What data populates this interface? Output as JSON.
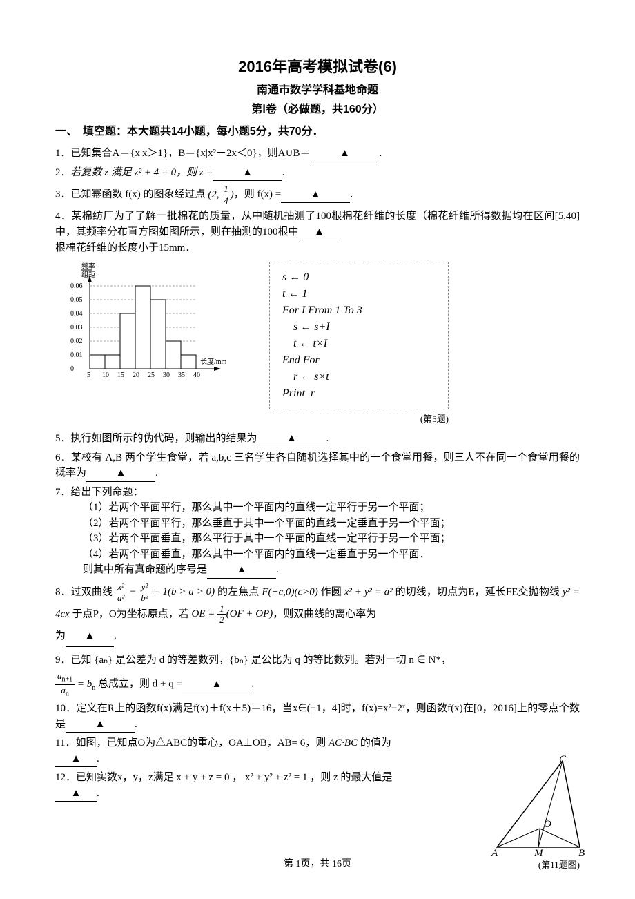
{
  "header": {
    "title": "2016年高考模拟试卷(6)",
    "subtitle": "南通市数学学科基地命题",
    "paper_part": "第Ⅰ卷（必做题，共160分）"
  },
  "section1": {
    "heading": "一、　填空题：本大题共14小题，每小题5分，共70分．"
  },
  "q1": {
    "num": "1．",
    "text_a": "已知集合A＝{x|x＞1}，B＝{x|x²－2x＜0}，则A∪B＝",
    "text_b": "."
  },
  "q2": {
    "num": "2．",
    "text_a": "若复数 z 满足 z² + 4 = 0，则 z =",
    "text_b": "."
  },
  "q3": {
    "num": "3．",
    "text_a": "已知幂函数 f(x) 的图象经过点",
    "point": "(2, 1/4)",
    "text_b": "，则 f(x) =",
    "text_c": "."
  },
  "q4": {
    "num": "4．",
    "text_a": "某棉纺厂为了了解一批棉花的质量，从中随机抽测了100根棉花纤维的长度（棉花纤维所得数据均在区间[5,40]中，其频率分布直方图如图所示，则在抽测的100根中",
    "text_b": "根棉花纤维的长度小于15mm．"
  },
  "histogram": {
    "ylabel_top": "频率",
    "ylabel_bot": "组距",
    "xlabel": "长度/mm",
    "yticks": [
      "0",
      "0.01",
      "0.02",
      "0.03",
      "0.04",
      "0.05",
      "0.06"
    ],
    "xticks": [
      "5",
      "10",
      "15",
      "20",
      "25",
      "30",
      "35",
      "40"
    ],
    "bars": [
      0.01,
      0.01,
      0.04,
      0.06,
      0.05,
      0.02,
      0.01
    ],
    "bar_color": "#ffffff",
    "border_color": "#000000",
    "grid_color": "#aaaaaa"
  },
  "pseudocode": {
    "lines": [
      "s ← 0",
      "t ← 1",
      "For I From 1 To 3",
      "    s ← s+I",
      "    t ← t×I",
      "End For",
      "    r ← s×t",
      "Print  r"
    ],
    "caption": "(第5题)"
  },
  "q5": {
    "num": "5．",
    "text_a": "执行如图所示的伪代码，则输出的结果为",
    "text_b": "."
  },
  "q6": {
    "num": "6．",
    "text_a": "某校有 A,B 两个学生食堂，若 a,b,c 三名学生各自随机选择其中的一个食堂用餐，则三人不在同一个食堂用餐的概率为",
    "text_b": "."
  },
  "q7": {
    "num": "7．",
    "lead": "给出下列命题：",
    "items": [
      "（1）若两个平面平行，那么其中一个平面内的直线一定平行于另一个平面；",
      "（2）若两个平面平行，那么垂直于其中一个平面的直线一定垂直于另一个平面；",
      "（3）若两个平面垂直，那么平行于其中一个平面的直线一定平行于另一个平面；",
      "（4）若两个平面垂直，那么其中一个平面内的直线一定垂直于另一个平面．"
    ],
    "tail": "则其中所有真命题的序号是",
    "tail_b": "."
  },
  "q8": {
    "num": "8．",
    "text_a": "过双曲线",
    "eq1": "x²/a² − y²/b² = 1 (b > a > 0)",
    "text_b": "的左焦点",
    "eq2": "F(−c,0)(c>0)",
    "text_c": "作圆",
    "eq3": "x² + y² = a²",
    "text_d": "的切线，切点为E，延长FE交抛物线",
    "eq4": "y² = 4cx",
    "text_e": "于点P，O为坐标原点，若",
    "eq5": "OE = ½(OF + OP)",
    "text_f": "，则双曲线的离心率为",
    "text_g": "."
  },
  "q9": {
    "num": "9．",
    "text_a": "已知 {aₙ} 是公差为 d 的等差数列，{bₙ} 是公比为 q 的等比数列。若对一切 n ∈ N*，",
    "eq": "a_{n+1}/aₙ = bₙ",
    "text_b": "总成立，则 d + q =",
    "text_c": "."
  },
  "q10": {
    "num": "10．",
    "text_a": "定义在R上的函数f(x)满足f(x)＋f(x＋5)＝16，当x∈(−1，4]时，f(x)=x²−2ˣ，则函数f(x)在[0，2016]上的零点个数是",
    "text_b": "."
  },
  "q11": {
    "num": "11．",
    "text_a": "如图，已知点O为△ABC的重心，OA⊥OB，AB= 6，则",
    "eq": "AC·BC",
    "text_b": "的值为",
    "text_c": "."
  },
  "q12": {
    "num": "12．",
    "text_a": "已知实数x，y，z满足 x + y + z = 0 ， x² + y² + z² = 1 ，则 z 的最大值是",
    "text_b": "."
  },
  "triangle": {
    "labels": {
      "A": "A",
      "B": "B",
      "C": "C",
      "O": "O",
      "M": "M"
    },
    "caption": "(第11题图)"
  },
  "footer": {
    "page": "第 1页，共 16页"
  }
}
